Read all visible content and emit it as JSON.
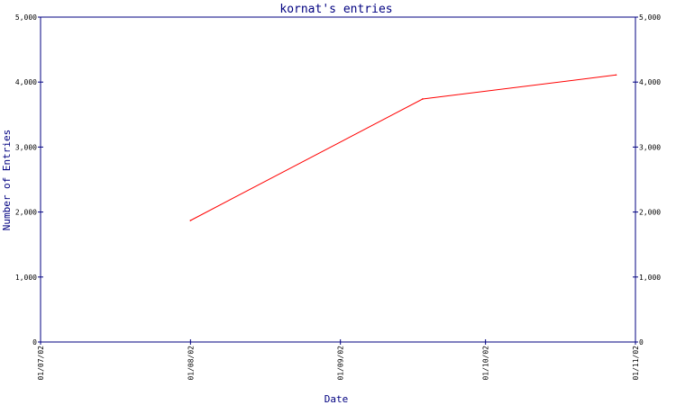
{
  "chart_data": {
    "type": "line",
    "title": "kornat's entries",
    "xlabel": "Date",
    "ylabel": "Number of Entries",
    "x_tick_labels": [
      "01/07/02",
      "01/08/02",
      "01/09/02",
      "01/10/02",
      "01/11/02"
    ],
    "x_ticks": [
      "2002-07-01",
      "2002-08-01",
      "2002-09-01",
      "2002-10-01",
      "2002-11-01"
    ],
    "xlim": [
      "2002-07-01",
      "2002-11-01"
    ],
    "y_tick_labels": [
      "0",
      "1,000",
      "2,000",
      "3,000",
      "4,000",
      "5,000"
    ],
    "y_ticks": [
      0,
      1000,
      2000,
      3000,
      4000,
      5000
    ],
    "ylim": [
      0,
      5000
    ],
    "series": [
      {
        "color": "#ff0000",
        "points": [
          {
            "x": "2002-08-01",
            "y": 1870
          },
          {
            "x": "2002-09-18",
            "y": 3740
          },
          {
            "x": "2002-10-28",
            "y": 4110
          }
        ]
      }
    ],
    "grid": false,
    "right_axis_mirrored": true
  },
  "colors": {
    "axis": "#000080",
    "title": "#000080",
    "series": "#ff0000"
  }
}
